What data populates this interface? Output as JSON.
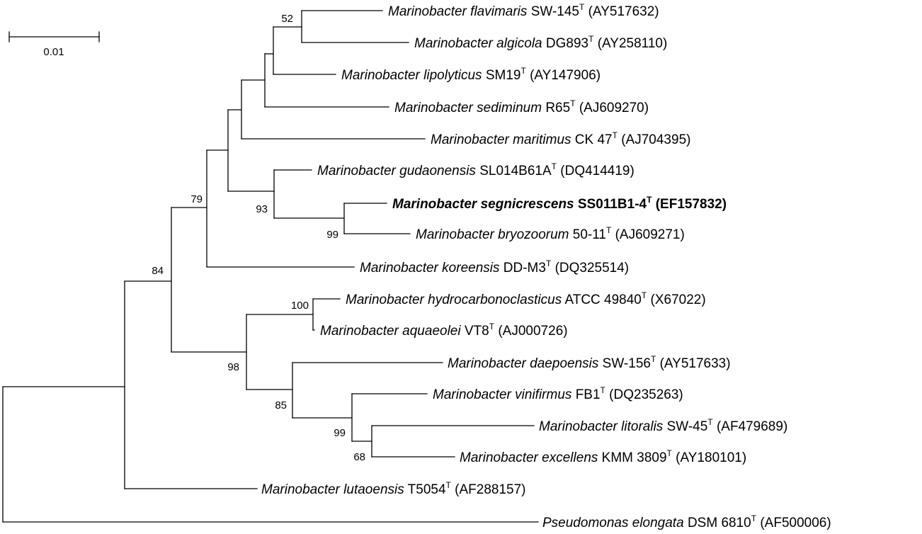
{
  "scale_bar": {
    "label": "0.01"
  },
  "taxa": [
    {
      "genus": "Marinobacter",
      "epithet": "flavimaris",
      "strain": "SW-145",
      "accession": "(AY517632)"
    },
    {
      "genus": "Marinobacter",
      "epithet": "algicola",
      "strain": "DG893",
      "accession": "(AY258110)"
    },
    {
      "genus": "Marinobacter",
      "epithet": "lipolyticus",
      "strain": "SM19",
      "accession": "(AY147906)"
    },
    {
      "genus": "Marinobacter",
      "epithet": "sediminum",
      "strain": "R65",
      "accession": "(AJ609270)"
    },
    {
      "genus": "Marinobacter",
      "epithet": "maritimus",
      "strain": "CK 47",
      "accession": "(AJ704395)"
    },
    {
      "genus": "Marinobacter",
      "epithet": "gudaonensis",
      "strain": "SL014B61A",
      "accession": "(DQ414419)"
    },
    {
      "genus": "Marinobacter",
      "epithet": "segnicrescens",
      "strain": "SS011B1-4",
      "accession": "(EF157832)",
      "bold": true
    },
    {
      "genus": "Marinobacter",
      "epithet": "bryozoorum",
      "strain": "50-11",
      "accession": "(AJ609271)"
    },
    {
      "genus": "Marinobacter",
      "epithet": "koreensis",
      "strain": "DD-M3",
      "accession": "(DQ325514)"
    },
    {
      "genus": "Marinobacter",
      "epithet": "hydrocarbonoclasticus",
      "strain": "ATCC 49840",
      "accession": "(X67022)"
    },
    {
      "genus": "Marinobacter",
      "epithet": "aquaeolei",
      "strain": "VT8",
      "accession": "(AJ000726)"
    },
    {
      "genus": "Marinobacter",
      "epithet": "daepoensis",
      "strain": "SW-156",
      "accession": "(AY517633)"
    },
    {
      "genus": "Marinobacter",
      "epithet": "vinifirmus",
      "strain": "FB1",
      "accession": "(DQ235263)"
    },
    {
      "genus": "Marinobacter",
      "epithet": "litoralis",
      "strain": "SW-45",
      "accession": "(AF479689)"
    },
    {
      "genus": "Marinobacter",
      "epithet": "excellens",
      "strain": "KMM 3809",
      "accession": "(AY180101)"
    },
    {
      "genus": "Marinobacter",
      "epithet": "lutaoensis",
      "strain": "T5054",
      "accession": "(AF288157)"
    },
    {
      "genus": "Pseudomonas",
      "epithet": "elongata",
      "strain": "DSM 6810",
      "accession": "(AF500006)"
    }
  ],
  "type_strain_mark": "T",
  "bootstrap_values": [
    "52",
    "79",
    "93",
    "99",
    "84",
    "100",
    "98",
    "85",
    "99",
    "68"
  ]
}
